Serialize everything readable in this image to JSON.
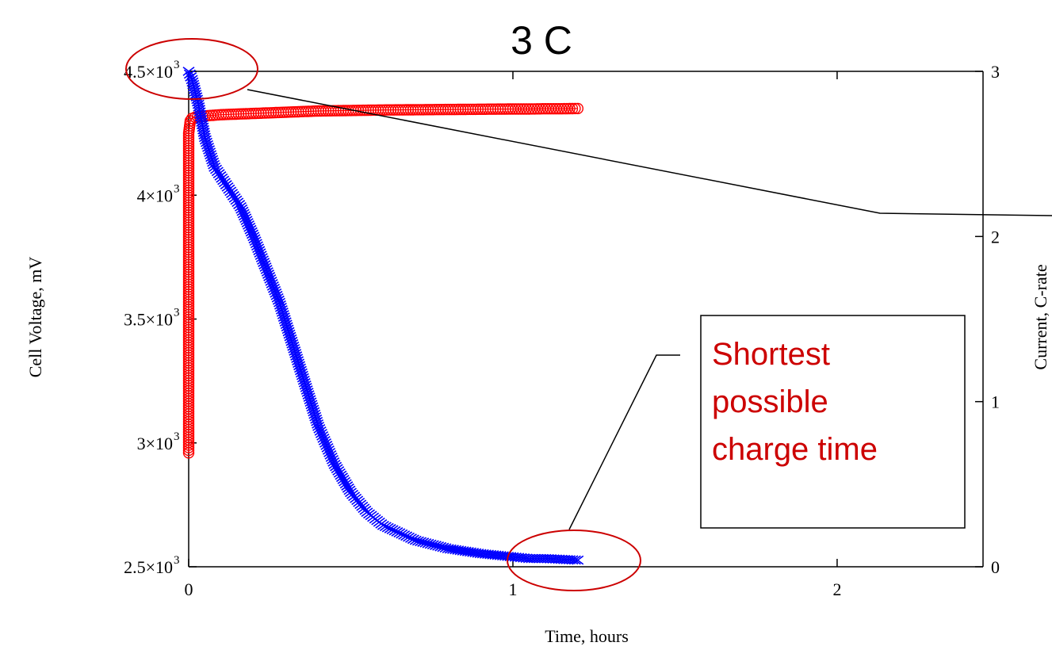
{
  "colors": {
    "voltage": "#ff0000",
    "current": "#0000ff",
    "annotation_text": "#cc0000",
    "ellipse": "#cc0000",
    "axis": "#000000"
  },
  "annotation": {
    "lines": [
      "Shortest",
      "possible",
      "charge time"
    ]
  },
  "chart_data": {
    "type": "scatter",
    "title": "3 C",
    "xlabel": "Time, hours",
    "ylabel": "Cell Voltage, mV",
    "y2label": "Current, C-rate",
    "xlim": [
      0,
      2.45
    ],
    "ylim": [
      2500,
      4500
    ],
    "y2lim": [
      0,
      3
    ],
    "x_ticks": [
      "0",
      "1",
      "2"
    ],
    "y_ticks": [
      {
        "mant": "2.5×10",
        "exp": "3",
        "value": 2500
      },
      {
        "mant": "3×10",
        "exp": "3",
        "value": 3000
      },
      {
        "mant": "3.5×10",
        "exp": "3",
        "value": 3500
      },
      {
        "mant": "4×10",
        "exp": "3",
        "value": 4000
      },
      {
        "mant": "4.5×10",
        "exp": "3",
        "value": 4500
      }
    ],
    "y2_ticks": [
      "0",
      "1",
      "2",
      "3"
    ],
    "series": [
      {
        "marker": "circle",
        "axis": "left",
        "x": [
          0,
          0,
          0,
          0,
          0,
          0,
          0,
          0,
          0,
          0,
          0.003,
          0.005,
          0.01,
          0.02,
          0.05,
          0.1,
          0.2,
          0.3,
          0.4,
          0.5,
          0.6,
          0.7,
          0.8,
          0.9,
          1.0,
          1.05,
          1.1,
          1.15,
          1.2
        ],
        "y": [
          2960,
          3200,
          3600,
          3700,
          3800,
          3900,
          4000,
          4100,
          4200,
          4250,
          4280,
          4300,
          4310,
          4315,
          4320,
          4325,
          4330,
          4335,
          4340,
          4342,
          4344,
          4345,
          4346,
          4347,
          4348,
          4348,
          4349,
          4349,
          4350
        ]
      },
      {
        "marker": "cross",
        "axis": "right",
        "x": [
          0,
          0.01,
          0.03,
          0.05,
          0.08,
          0.12,
          0.16,
          0.2,
          0.24,
          0.28,
          0.32,
          0.36,
          0.4,
          0.45,
          0.5,
          0.55,
          0.6,
          0.7,
          0.8,
          0.9,
          1.0,
          1.05,
          1.1,
          1.15,
          1.2
        ],
        "y": [
          3.0,
          2.95,
          2.8,
          2.6,
          2.42,
          2.3,
          2.18,
          2.0,
          1.8,
          1.6,
          1.35,
          1.1,
          0.85,
          0.62,
          0.45,
          0.33,
          0.25,
          0.16,
          0.11,
          0.08,
          0.06,
          0.05,
          0.05,
          0.045,
          0.04
        ]
      }
    ]
  }
}
